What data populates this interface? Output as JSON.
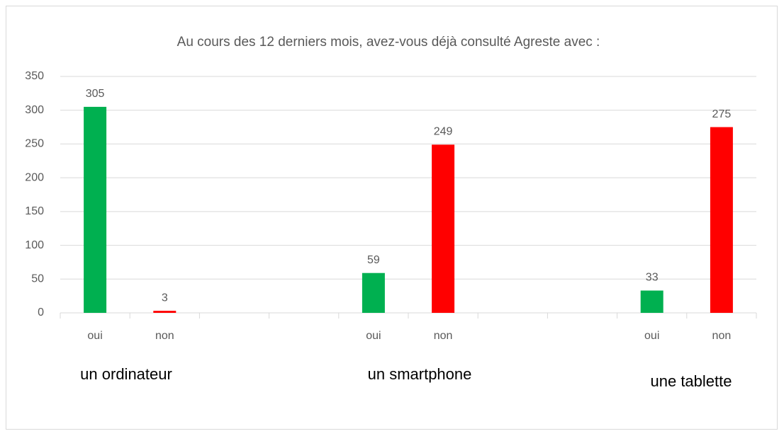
{
  "chart_data": {
    "type": "bar",
    "title": "Au cours des 12 derniers mois, avez-vous déjà consulté Agreste avec :",
    "categories": [
      "oui",
      "non",
      null,
      null,
      "oui",
      "non",
      null,
      null,
      "oui",
      "non"
    ],
    "values": [
      305,
      3,
      null,
      null,
      59,
      249,
      null,
      null,
      33,
      275
    ],
    "colors": [
      "#00b050",
      "#ff0000",
      null,
      null,
      "#00b050",
      "#ff0000",
      null,
      null,
      "#00b050",
      "#ff0000"
    ],
    "group_labels": [
      "un ordinateur",
      "un smartphone",
      "une tablette"
    ],
    "ylim": [
      0,
      350
    ],
    "yticks": [
      0,
      50,
      100,
      150,
      200,
      250,
      300,
      350
    ],
    "grid": true
  }
}
